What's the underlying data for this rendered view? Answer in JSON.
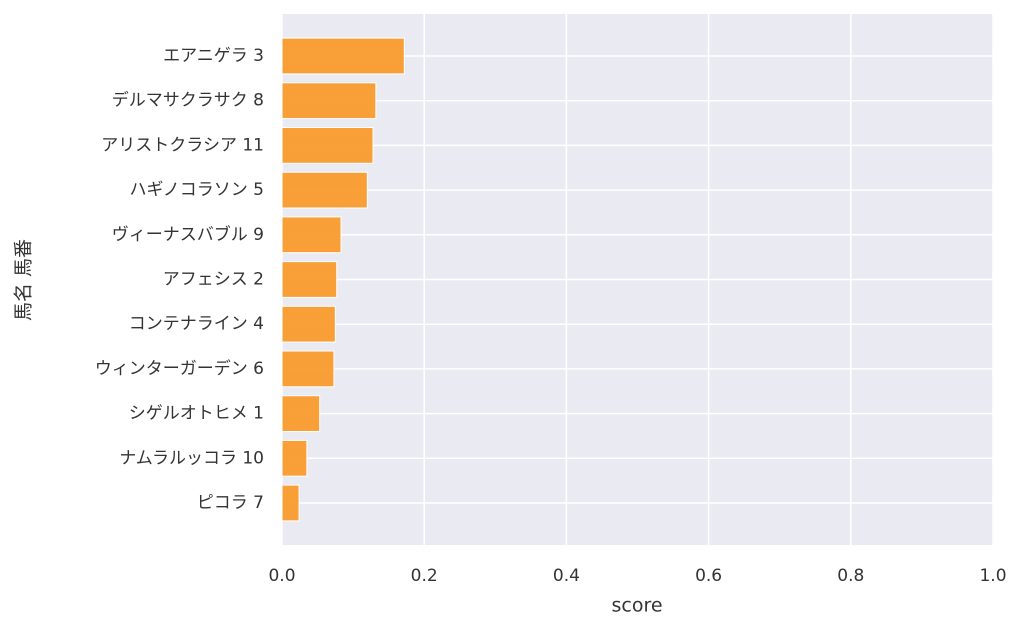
{
  "chart_data": {
    "type": "barh",
    "xlabel": "score",
    "ylabel": "馬名 馬番",
    "categories": [
      "エアニゲラ 3",
      "デルマサクラサク 8",
      "アリストクラシア 11",
      "ハギノコラソン 5",
      "ヴィーナスバブル 9",
      "アフェシス 2",
      "コンテナライン 4",
      "ウィンターガーデン 6",
      "シゲルオトヒメ 1",
      "ナムラルッコラ 10",
      "ピコラ 7"
    ],
    "values": [
      0.172,
      0.132,
      0.128,
      0.12,
      0.083,
      0.077,
      0.075,
      0.073,
      0.053,
      0.035,
      0.024
    ],
    "color": "#f99b2c",
    "xlim": [
      0,
      1
    ],
    "xticks": [
      {
        "value": 0,
        "label": "0.0"
      },
      0.2,
      0.4,
      0.6,
      0.8,
      {
        "value": 1,
        "label": "1.0"
      }
    ],
    "grid": true
  }
}
